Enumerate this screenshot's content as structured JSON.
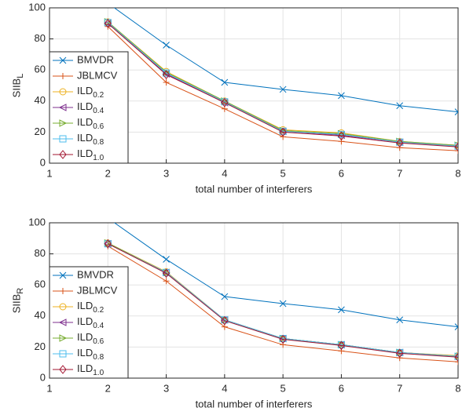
{
  "chart_data": [
    {
      "type": "line",
      "ylabel": "SIIB",
      "ylabel_sub": "L",
      "xlabel": "total number of interferers",
      "x": [
        2,
        3,
        4,
        5,
        6,
        7,
        8
      ],
      "xlim": [
        1,
        8
      ],
      "xticks": [
        1,
        2,
        3,
        4,
        5,
        6,
        7,
        8
      ],
      "ylim": [
        0,
        100
      ],
      "yticks": [
        0,
        20,
        40,
        60,
        80,
        100
      ],
      "grid": true,
      "legend": "lower left",
      "series": [
        {
          "name": "BMVDR",
          "color": "#0072BD",
          "marker": "x",
          "values": [
            103,
            76,
            52,
            47.5,
            43.5,
            37,
            33
          ]
        },
        {
          "name": "JBLMCV",
          "color": "#D95319",
          "marker": "+",
          "values": [
            88,
            52,
            35,
            17,
            14,
            10,
            8
          ]
        },
        {
          "name": "ILD0.2",
          "color": "#EDB120",
          "marker": "o",
          "values": [
            91,
            59,
            40,
            21.5,
            19.5,
            14,
            11.5
          ]
        },
        {
          "name": "ILD0.4",
          "color": "#7E2F8E",
          "marker": "<",
          "values": [
            90,
            57.5,
            39,
            20.5,
            18,
            13.5,
            11
          ]
        },
        {
          "name": "ILD0.6",
          "color": "#77AC30",
          "marker": ">",
          "values": [
            91,
            58.5,
            40,
            21,
            19,
            14,
            11.5
          ]
        },
        {
          "name": "ILD0.8",
          "color": "#4DBEEE",
          "marker": "s",
          "values": [
            90.5,
            58,
            39.5,
            20.5,
            18.5,
            13.5,
            11
          ]
        },
        {
          "name": "ILD1.0",
          "color": "#A2142F",
          "marker": "d",
          "values": [
            90,
            57,
            39,
            20,
            17.5,
            13,
            10.5
          ]
        }
      ]
    },
    {
      "type": "line",
      "ylabel": "SIIB",
      "ylabel_sub": "R",
      "xlabel": "total number of interferers",
      "x": [
        2,
        3,
        4,
        5,
        6,
        7,
        8
      ],
      "xlim": [
        1,
        8
      ],
      "xticks": [
        1,
        2,
        3,
        4,
        5,
        6,
        7,
        8
      ],
      "ylim": [
        0,
        100
      ],
      "yticks": [
        0,
        20,
        40,
        60,
        80,
        100
      ],
      "grid": true,
      "legend": "lower left",
      "series": [
        {
          "name": "BMVDR",
          "color": "#0072BD",
          "marker": "x",
          "values": [
            103,
            76.5,
            52.5,
            48,
            44,
            37.5,
            33
          ]
        },
        {
          "name": "JBLMCV",
          "color": "#D95319",
          "marker": "+",
          "values": [
            85,
            62.5,
            33,
            21.5,
            17.5,
            13,
            10.5
          ]
        },
        {
          "name": "ILD0.2",
          "color": "#EDB120",
          "marker": "o",
          "values": [
            87,
            68.5,
            37.5,
            25.5,
            21.5,
            16.5,
            14.5
          ]
        },
        {
          "name": "ILD0.4",
          "color": "#7E2F8E",
          "marker": "<",
          "values": [
            86.5,
            68,
            37.5,
            25.5,
            21.5,
            16.5,
            14
          ]
        },
        {
          "name": "ILD0.6",
          "color": "#77AC30",
          "marker": ">",
          "values": [
            87,
            68,
            37.5,
            25.5,
            21.5,
            16.5,
            14
          ]
        },
        {
          "name": "ILD0.8",
          "color": "#4DBEEE",
          "marker": "s",
          "values": [
            86.5,
            68,
            37.5,
            25.5,
            21.5,
            16.5,
            14
          ]
        },
        {
          "name": "ILD1.0",
          "color": "#A2142F",
          "marker": "d",
          "values": [
            86.5,
            67.5,
            37,
            25,
            21,
            16,
            13.5
          ]
        }
      ]
    }
  ]
}
